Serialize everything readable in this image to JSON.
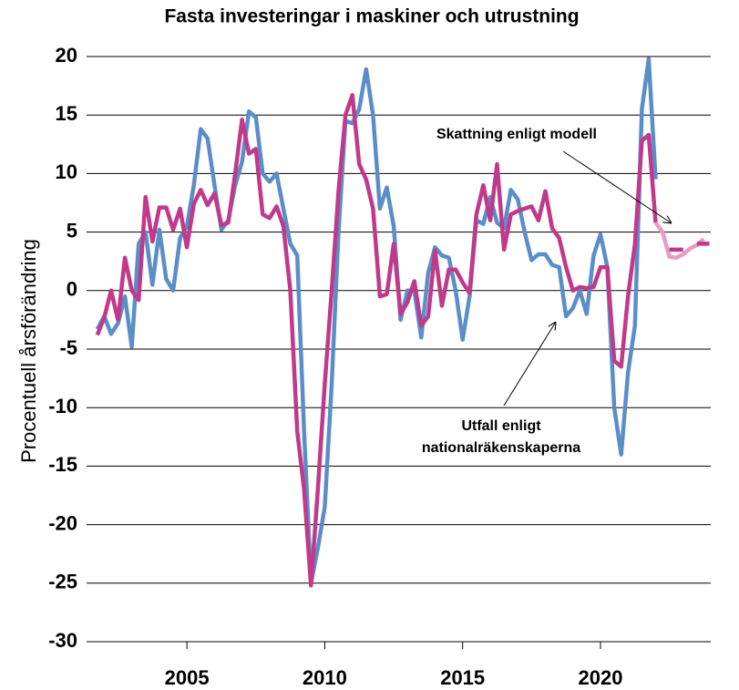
{
  "chart_data": {
    "type": "line",
    "title": "Fasta investeringar i maskiner och utrustning",
    "y_label": "Procentuell årsförändring",
    "annotations": [
      "Skattning enligt modell",
      "Utfall enligt",
      "nationalräkenskaperna"
    ],
    "xlim": [
      2001.36,
      2024.0
    ],
    "xticks": [
      2005,
      2010,
      2015,
      2020
    ],
    "ylim": [
      -30,
      20
    ],
    "yticks": [
      -30,
      -25,
      -20,
      -15,
      -10,
      -5,
      0,
      5,
      10,
      15,
      20
    ],
    "grid": true,
    "series": [
      {
        "color": "#5b8ec9",
        "x": [
          2001.75,
          2002,
          2002.25,
          2002.5,
          2002.75,
          2003,
          2003.25,
          2003.5,
          2003.75,
          2004,
          2004.25,
          2004.5,
          2004.75,
          2005,
          2005.25,
          2005.5,
          2005.75,
          2006,
          2006.25,
          2006.5,
          2006.75,
          2007,
          2007.25,
          2007.5,
          2007.75,
          2008,
          2008.25,
          2008.5,
          2008.75,
          2009,
          2009.25,
          2009.5,
          2009.75,
          2010,
          2010.25,
          2010.5,
          2010.75,
          2011,
          2011.25,
          2011.5,
          2011.75,
          2012,
          2012.25,
          2012.5,
          2012.75,
          2013,
          2013.25,
          2013.5,
          2013.75,
          2014,
          2014.25,
          2014.5,
          2014.75,
          2015,
          2015.25,
          2015.5,
          2015.75,
          2016,
          2016.25,
          2016.5,
          2016.75,
          2017,
          2017.25,
          2017.5,
          2017.75,
          2018,
          2018.25,
          2018.5,
          2018.75,
          2019,
          2019.25,
          2019.5,
          2019.75,
          2020,
          2020.25,
          2020.5,
          2020.75,
          2021,
          2021.25,
          2021.5,
          2021.75,
          2022
        ],
        "values": [
          -3.3,
          -2.2,
          -3.7,
          -2.8,
          -0.5,
          -4.8,
          4.0,
          5.0,
          0.5,
          5.2,
          1.0,
          0.0,
          4.5,
          5.5,
          9.0,
          13.8,
          13.0,
          9.0,
          5.2,
          6.0,
          9.0,
          11.0,
          15.3,
          14.8,
          10.0,
          9.3,
          10.0,
          7.0,
          4.0,
          3.0,
          -12.0,
          -25.0,
          -22.0,
          -18.5,
          -8.0,
          5.0,
          14.5,
          14.3,
          15.5,
          18.9,
          15.0,
          7.0,
          8.8,
          5.5,
          -2.5,
          0.0,
          0.0,
          -4.0,
          1.5,
          3.7,
          3.0,
          2.8,
          0.0,
          -4.2,
          -0.5,
          6.0,
          5.7,
          8.0,
          5.8,
          5.3,
          8.6,
          7.8,
          5.0,
          2.6,
          3.1,
          3.1,
          2.2,
          2.0,
          -2.2,
          -1.5,
          0.0,
          -2.0,
          3.0,
          4.8,
          2.0,
          -10.0,
          -14.0,
          -7.0,
          -3.0,
          15.5,
          19.8,
          9.5
        ]
      },
      {
        "color": "#c0398a",
        "x": [
          2001.75,
          2002,
          2002.25,
          2002.5,
          2002.75,
          2003,
          2003.25,
          2003.5,
          2003.75,
          2004,
          2004.25,
          2004.5,
          2004.75,
          2005,
          2005.25,
          2005.5,
          2005.75,
          2006,
          2006.25,
          2006.5,
          2006.75,
          2007,
          2007.25,
          2007.5,
          2007.75,
          2008,
          2008.25,
          2008.5,
          2008.75,
          2009,
          2009.25,
          2009.5,
          2009.75,
          2010,
          2010.25,
          2010.5,
          2010.75,
          2011,
          2011.25,
          2011.5,
          2011.75,
          2012,
          2012.25,
          2012.5,
          2012.75,
          2013,
          2013.25,
          2013.5,
          2013.75,
          2014,
          2014.25,
          2014.5,
          2014.75,
          2015,
          2015.25,
          2015.5,
          2015.75,
          2016,
          2016.25,
          2016.5,
          2016.75,
          2017,
          2017.25,
          2017.5,
          2017.75,
          2018,
          2018.25,
          2018.5,
          2018.75,
          2019,
          2019.25,
          2019.5,
          2019.75,
          2020,
          2020.25,
          2020.5,
          2020.75,
          2021,
          2021.25,
          2021.5,
          2021.75,
          2022
        ],
        "values": [
          -3.8,
          -2.3,
          0.0,
          -2.5,
          2.8,
          0.0,
          -0.8,
          8.0,
          4.2,
          7.1,
          7.1,
          5.2,
          7.0,
          3.7,
          7.4,
          8.6,
          7.3,
          8.3,
          5.6,
          5.8,
          10.0,
          14.6,
          11.7,
          12.1,
          6.5,
          6.2,
          7.2,
          5.5,
          0.0,
          -12.0,
          -17.0,
          -25.2,
          -17.0,
          -8.0,
          0.0,
          8.5,
          15.0,
          16.7,
          10.8,
          9.5,
          7.0,
          -0.5,
          -0.3,
          4.0,
          -2.0,
          -1.0,
          0.8,
          -3.0,
          -2.2,
          3.4,
          -1.3,
          1.8,
          1.8,
          0.7,
          -0.2,
          6.5,
          9.0,
          6.0,
          10.8,
          3.5,
          6.5,
          6.8,
          7.0,
          7.2,
          6.0,
          8.5,
          5.3,
          4.5,
          2.0,
          0.0,
          0.3,
          0.2,
          0.3,
          2.0,
          2.0,
          -6.0,
          -6.5,
          -0.5,
          4.0,
          12.8,
          13.3,
          5.8
        ]
      },
      {
        "color": "#e89cc4",
        "x": [
          2022,
          2022.25,
          2022.5,
          2022.75,
          2023,
          2023.25,
          2023.5,
          2023.75
        ],
        "values": [
          5.8,
          5.0,
          2.9,
          2.8,
          3.1,
          3.6,
          3.9,
          4.4
        ]
      },
      {
        "color": "#c0398a",
        "x": [
          2022.5,
          2023.0,
          2023.25,
          2023.5,
          2023.95
        ],
        "values": [
          3.5,
          3.5,
          null,
          4.0,
          4.0
        ]
      }
    ]
  }
}
